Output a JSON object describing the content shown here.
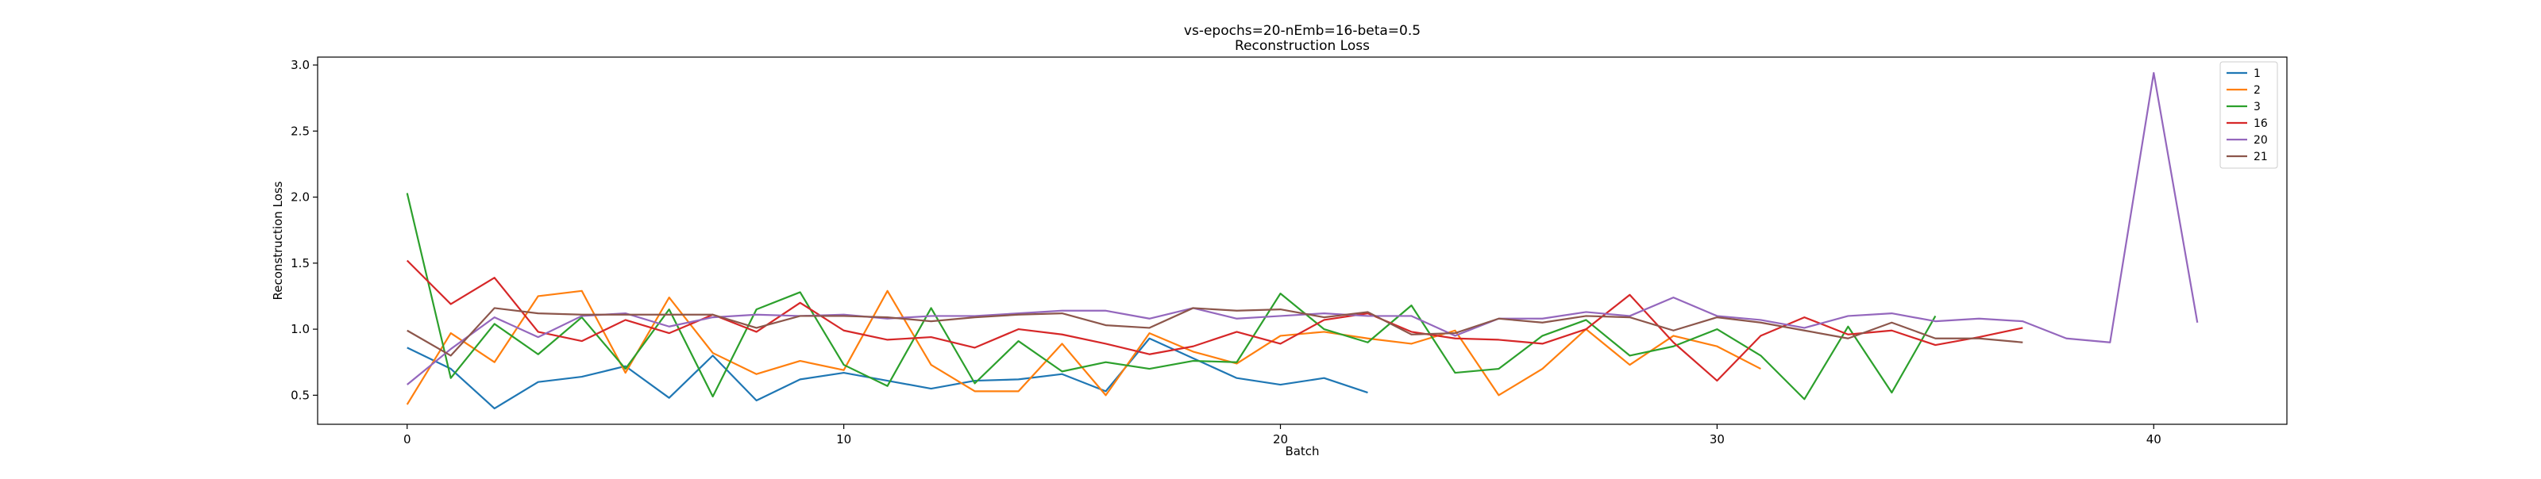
{
  "chart_data": {
    "type": "line",
    "title": "vs-epochs=20-nEmb=16-beta=0.5",
    "subtitle": "Reconstruction Loss",
    "xlabel": "Batch",
    "ylabel": "Reconstruction Loss",
    "xlim": [
      -2.05,
      43.05
    ],
    "ylim": [
      0.28,
      3.06
    ],
    "xticks": [
      0,
      10,
      20,
      30,
      40
    ],
    "yticks": [
      0.5,
      1.0,
      1.5,
      2.0,
      2.5,
      3.0
    ],
    "ytick_labels": [
      "0.5",
      "1.0",
      "1.5",
      "2.0",
      "2.5",
      "3.0"
    ],
    "grid": false,
    "legend_position": "top-right",
    "series": [
      {
        "name": "1",
        "color": "#1f77b4",
        "values": [
          0.86,
          0.7,
          0.4,
          0.6,
          0.64,
          0.72,
          0.48,
          0.8,
          0.46,
          0.62,
          0.67,
          0.61,
          0.55,
          0.61,
          0.62,
          0.66,
          0.53,
          0.93,
          0.78,
          0.63,
          0.58,
          0.63,
          0.52
        ]
      },
      {
        "name": "2",
        "color": "#ff7f0e",
        "values": [
          0.43,
          0.97,
          0.75,
          1.25,
          1.29,
          0.67,
          1.24,
          0.82,
          0.66,
          0.76,
          0.69,
          1.29,
          0.73,
          0.53,
          0.53,
          0.89,
          0.5,
          0.97,
          0.83,
          0.74,
          0.95,
          0.98,
          0.93,
          0.89,
          0.99,
          0.5,
          0.7,
          1.0,
          0.73,
          0.95,
          0.87,
          0.7
        ]
      },
      {
        "name": "3",
        "color": "#2ca02c",
        "values": [
          2.03,
          0.63,
          1.04,
          0.81,
          1.09,
          0.7,
          1.15,
          0.49,
          1.15,
          1.28,
          0.73,
          0.57,
          1.16,
          0.59,
          0.91,
          0.68,
          0.75,
          0.7,
          0.76,
          0.75,
          1.27,
          1.0,
          0.9,
          1.18,
          0.67,
          0.7,
          0.95,
          1.07,
          0.8,
          0.87,
          1.0,
          0.8,
          0.47,
          1.02,
          0.52,
          1.1
        ]
      },
      {
        "name": "16",
        "color": "#d62728",
        "values": [
          1.52,
          1.19,
          1.39,
          0.98,
          0.91,
          1.07,
          0.97,
          1.11,
          0.98,
          1.2,
          0.99,
          0.92,
          0.94,
          0.86,
          1.0,
          0.96,
          0.89,
          0.81,
          0.87,
          0.98,
          0.89,
          1.07,
          1.12,
          0.98,
          0.93,
          0.92,
          0.89,
          1.0,
          1.26,
          0.9,
          0.61,
          0.95,
          1.09,
          0.96,
          0.99,
          0.88,
          0.94,
          1.01
        ]
      },
      {
        "name": "20",
        "color": "#9467bd",
        "values": [
          0.58,
          0.85,
          1.09,
          0.94,
          1.1,
          1.12,
          1.02,
          1.09,
          1.11,
          1.1,
          1.11,
          1.08,
          1.1,
          1.1,
          1.12,
          1.14,
          1.14,
          1.08,
          1.16,
          1.08,
          1.1,
          1.12,
          1.1,
          1.1,
          0.95,
          1.08,
          1.08,
          1.13,
          1.1,
          1.24,
          1.1,
          1.07,
          1.01,
          1.1,
          1.12,
          1.06,
          1.08,
          1.06,
          0.93,
          0.9,
          2.94,
          1.05
        ]
      },
      {
        "name": "21",
        "color": "#8c564b",
        "values": [
          0.99,
          0.8,
          1.16,
          1.12,
          1.11,
          1.11,
          1.11,
          1.11,
          1.01,
          1.1,
          1.1,
          1.09,
          1.06,
          1.09,
          1.11,
          1.12,
          1.03,
          1.01,
          1.16,
          1.14,
          1.15,
          1.09,
          1.13,
          0.96,
          0.97,
          1.08,
          1.05,
          1.1,
          1.09,
          0.99,
          1.09,
          1.05,
          0.99,
          0.93,
          1.05,
          0.93,
          0.93,
          0.9
        ]
      }
    ]
  }
}
